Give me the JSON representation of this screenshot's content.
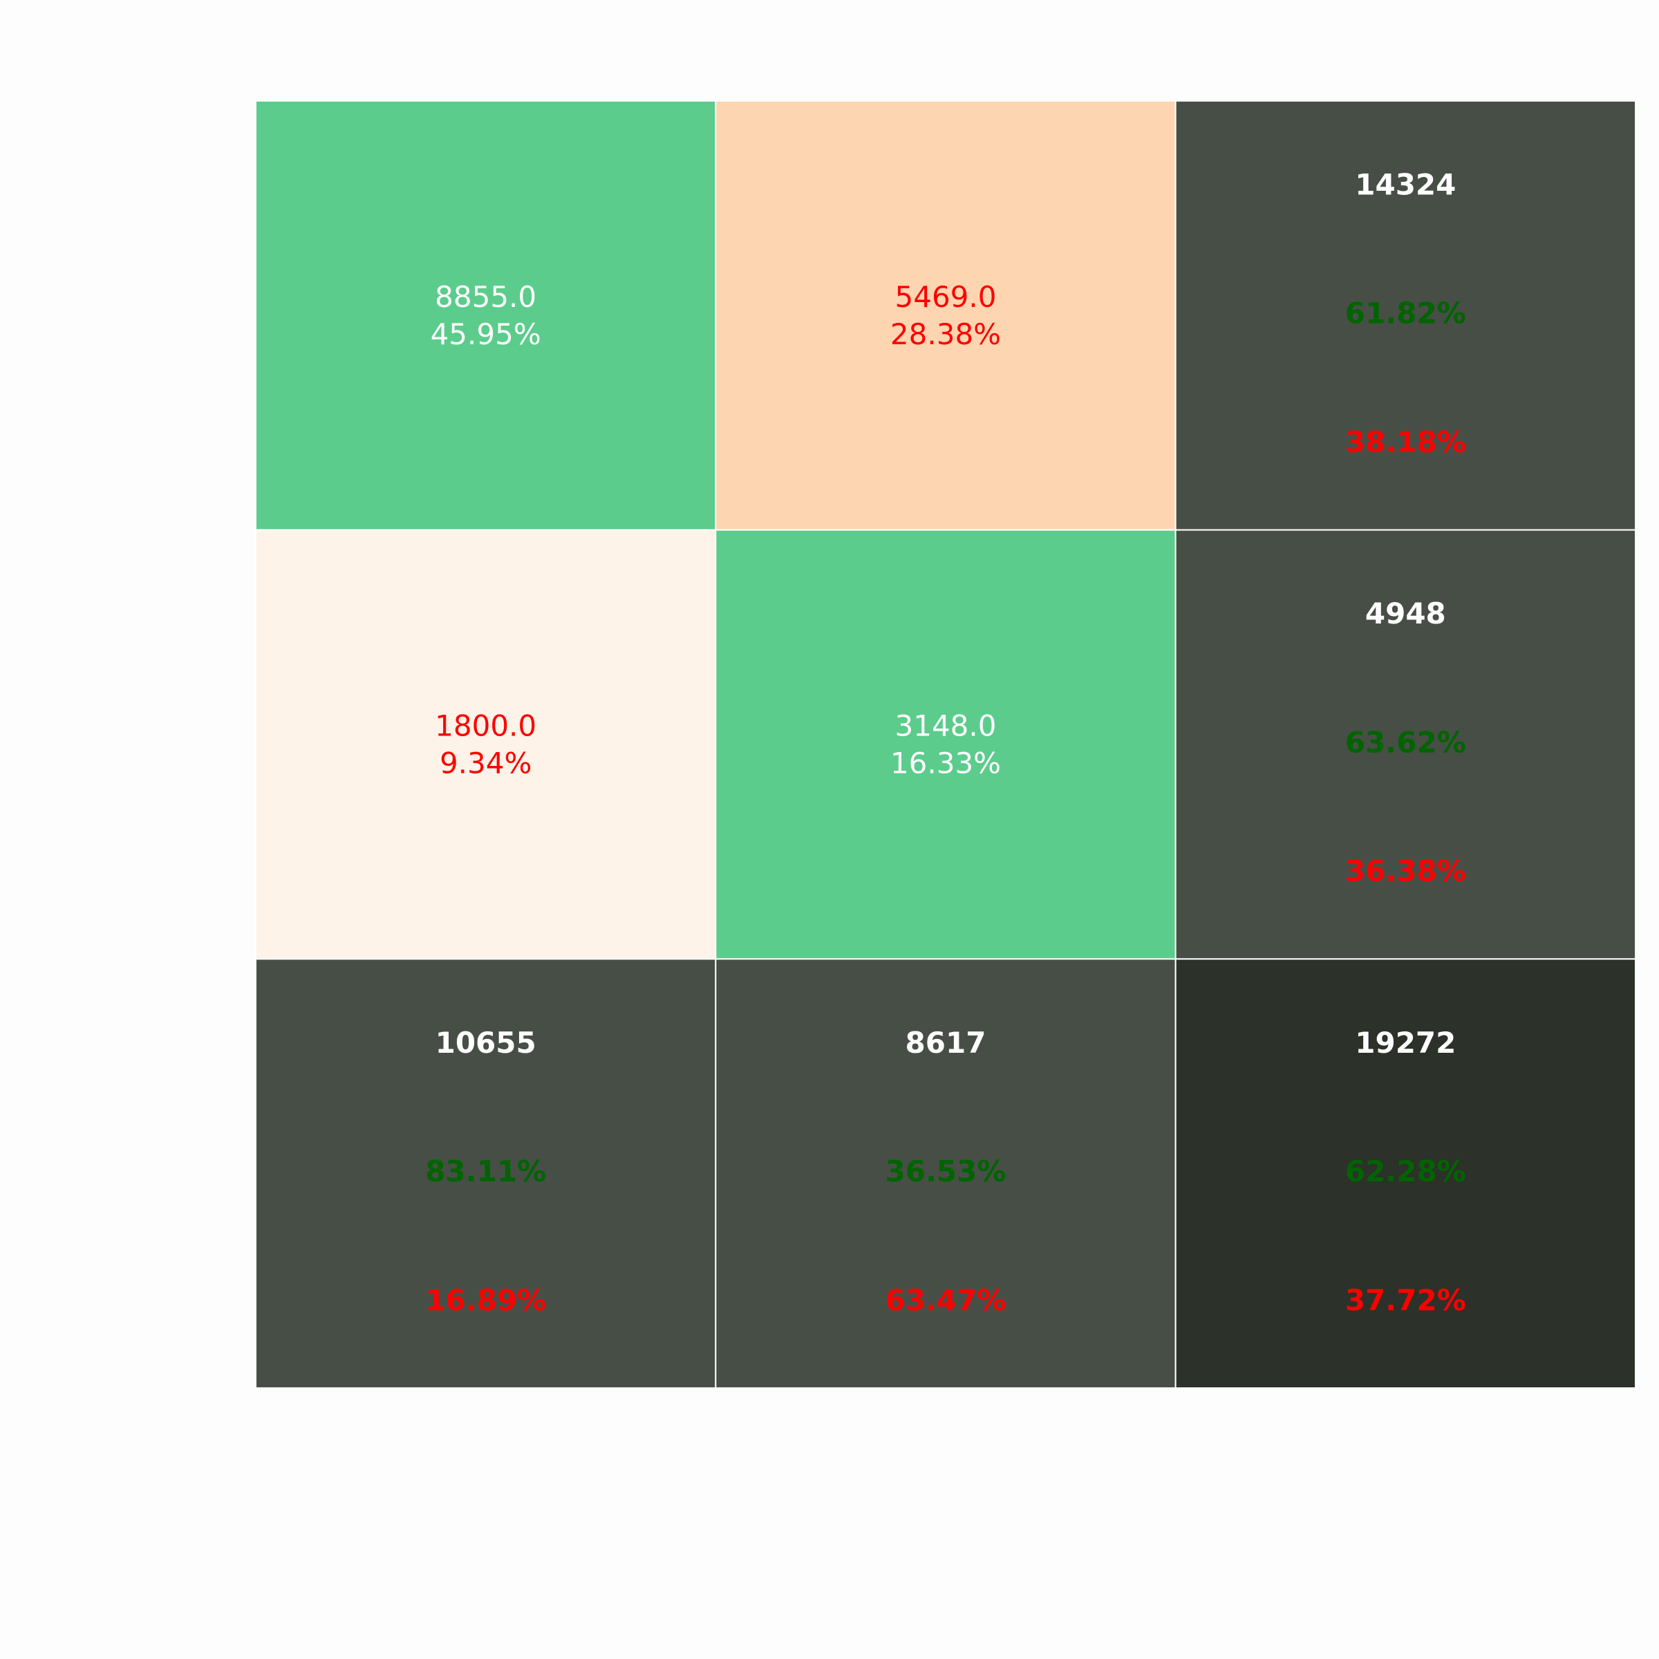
{
  "chart_data": {
    "type": "heatmap",
    "title": "",
    "xlabel": "",
    "ylabel": "",
    "grid": true,
    "legend": "none",
    "rows": 3,
    "cols": 3,
    "cells": [
      [
        {
          "kind": "matrix",
          "value": "8855.0",
          "percent": "45.95%",
          "fill": "#5bcc8b",
          "text_color": "#ffffff"
        },
        {
          "kind": "matrix",
          "value": "5469.0",
          "percent": "28.38%",
          "fill": "#fdd5b1",
          "text_color": "#ff0000"
        },
        {
          "kind": "summary",
          "total": "14324",
          "correct": "61.82%",
          "incorrect": "38.18%",
          "fill": "#474e46"
        }
      ],
      [
        {
          "kind": "matrix",
          "value": "1800.0",
          "percent": "9.34%",
          "fill": "#fdf3e8",
          "text_color": "#ff0000"
        },
        {
          "kind": "matrix",
          "value": "3148.0",
          "percent": "16.33%",
          "fill": "#5bcc8b",
          "text_color": "#ffffff"
        },
        {
          "kind": "summary",
          "total": "4948",
          "correct": "63.62%",
          "incorrect": "36.38%",
          "fill": "#474e46"
        }
      ],
      [
        {
          "kind": "summary",
          "total": "10655",
          "correct": "83.11%",
          "incorrect": "16.89%",
          "fill": "#474e46"
        },
        {
          "kind": "summary",
          "total": "8617",
          "correct": "36.53%",
          "incorrect": "63.47%",
          "fill": "#474e46"
        },
        {
          "kind": "summary",
          "total": "19272",
          "correct": "62.28%",
          "incorrect": "37.72%",
          "fill": "#2c3129"
        }
      ]
    ],
    "colors": {
      "correct_text": "#006400",
      "incorrect_text": "#ff0000",
      "summary_total_text": "#ffffff",
      "cell_border": "#ffffff",
      "background": "#fdfdfd"
    }
  }
}
